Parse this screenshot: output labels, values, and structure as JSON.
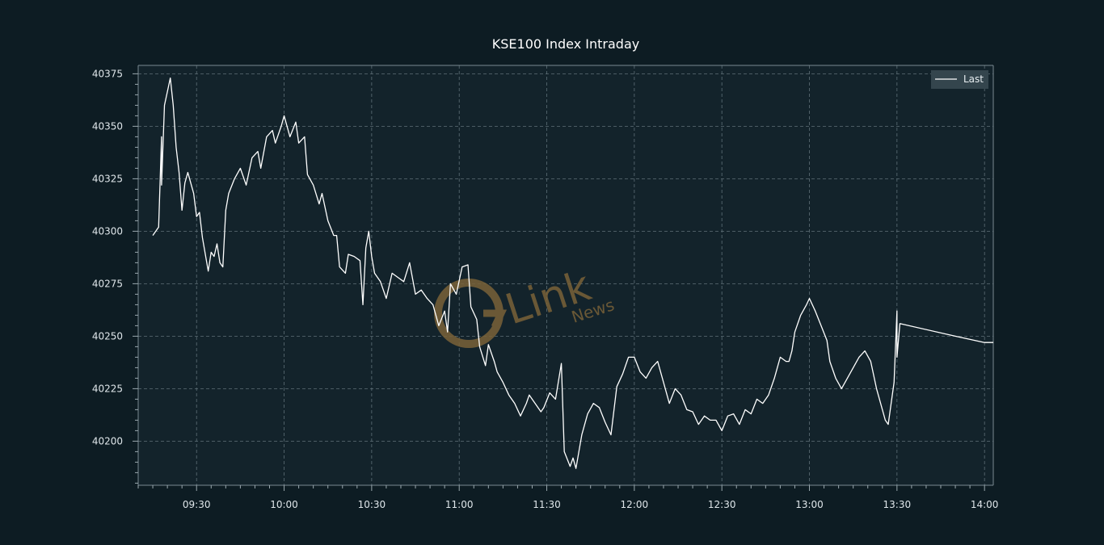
{
  "chart_data": {
    "type": "line",
    "title": "KSE100 Index Intraday",
    "xlabel": "",
    "ylabel": "",
    "x_ticks": [
      "09:30",
      "10:00",
      "10:30",
      "11:00",
      "11:30",
      "12:00",
      "12:30",
      "13:00",
      "13:30",
      "14:00"
    ],
    "y_ticks": [
      40200,
      40225,
      40250,
      40275,
      40300,
      40325,
      40350,
      40375
    ],
    "xlim": [
      "09:10",
      "14:03"
    ],
    "ylim": [
      40179,
      40379
    ],
    "grid": true,
    "legend_position": "top-right",
    "series": [
      {
        "name": "Last",
        "color": "#ffffff",
        "points": [
          [
            "09:15",
            40298
          ],
          [
            "09:17",
            40302
          ],
          [
            "09:18",
            40345
          ],
          [
            "09:18",
            40322
          ],
          [
            "09:19",
            40360
          ],
          [
            "09:21",
            40373
          ],
          [
            "09:22",
            40360
          ],
          [
            "09:23",
            40340
          ],
          [
            "09:24",
            40328
          ],
          [
            "09:25",
            40310
          ],
          [
            "09:26",
            40323
          ],
          [
            "09:27",
            40328
          ],
          [
            "09:29",
            40318
          ],
          [
            "09:30",
            40307
          ],
          [
            "09:31",
            40309
          ],
          [
            "09:32",
            40297
          ],
          [
            "09:34",
            40281
          ],
          [
            "09:35",
            40290
          ],
          [
            "09:36",
            40288
          ],
          [
            "09:37",
            40294
          ],
          [
            "09:38",
            40285
          ],
          [
            "09:39",
            40283
          ],
          [
            "09:40",
            40310
          ],
          [
            "09:41",
            40318
          ],
          [
            "09:43",
            40325
          ],
          [
            "09:45",
            40330
          ],
          [
            "09:47",
            40322
          ],
          [
            "09:49",
            40335
          ],
          [
            "09:51",
            40338
          ],
          [
            "09:52",
            40330
          ],
          [
            "09:54",
            40345
          ],
          [
            "09:56",
            40348
          ],
          [
            "09:57",
            40342
          ],
          [
            "09:59",
            40350
          ],
          [
            "10:00",
            40355
          ],
          [
            "10:02",
            40345
          ],
          [
            "10:04",
            40352
          ],
          [
            "10:05",
            40342
          ],
          [
            "10:07",
            40345
          ],
          [
            "10:08",
            40327
          ],
          [
            "10:10",
            40322
          ],
          [
            "10:12",
            40313
          ],
          [
            "10:13",
            40318
          ],
          [
            "10:15",
            40305
          ],
          [
            "10:17",
            40298
          ],
          [
            "10:18",
            40298
          ],
          [
            "10:19",
            40283
          ],
          [
            "10:21",
            40280
          ],
          [
            "10:22",
            40289
          ],
          [
            "10:24",
            40288
          ],
          [
            "10:26",
            40286
          ],
          [
            "10:27",
            40265
          ],
          [
            "10:28",
            40292
          ],
          [
            "10:29",
            40300
          ],
          [
            "10:30",
            40288
          ],
          [
            "10:31",
            40280
          ],
          [
            "10:33",
            40276
          ],
          [
            "10:35",
            40268
          ],
          [
            "10:37",
            40280
          ],
          [
            "10:39",
            40278
          ],
          [
            "10:41",
            40276
          ],
          [
            "10:43",
            40285
          ],
          [
            "10:45",
            40270
          ],
          [
            "10:47",
            40272
          ],
          [
            "10:49",
            40268
          ],
          [
            "10:51",
            40265
          ],
          [
            "10:53",
            40255
          ],
          [
            "10:55",
            40262
          ],
          [
            "10:56",
            40252
          ],
          [
            "10:57",
            40275
          ],
          [
            "10:59",
            40270
          ],
          [
            "11:01",
            40283
          ],
          [
            "11:03",
            40284
          ],
          [
            "11:04",
            40264
          ],
          [
            "11:06",
            40258
          ],
          [
            "11:07",
            40245
          ],
          [
            "11:09",
            40236
          ],
          [
            "11:10",
            40246
          ],
          [
            "11:12",
            40238
          ],
          [
            "11:13",
            40233
          ],
          [
            "11:15",
            40228
          ],
          [
            "11:17",
            40222
          ],
          [
            "11:19",
            40218
          ],
          [
            "11:21",
            40212
          ],
          [
            "11:23",
            40218
          ],
          [
            "11:24",
            40222
          ],
          [
            "11:26",
            40218
          ],
          [
            "11:28",
            40214
          ],
          [
            "11:29",
            40216
          ],
          [
            "11:31",
            40223
          ],
          [
            "11:33",
            40220
          ],
          [
            "11:35",
            40237
          ],
          [
            "11:36",
            40195
          ],
          [
            "11:38",
            40188
          ],
          [
            "11:39",
            40192
          ],
          [
            "11:40",
            40187
          ],
          [
            "11:42",
            40203
          ],
          [
            "11:44",
            40213
          ],
          [
            "11:46",
            40218
          ],
          [
            "11:48",
            40216
          ],
          [
            "11:50",
            40209
          ],
          [
            "11:52",
            40203
          ],
          [
            "11:54",
            40226
          ],
          [
            "11:56",
            40232
          ],
          [
            "11:58",
            40240
          ],
          [
            "12:00",
            40240
          ],
          [
            "12:02",
            40233
          ],
          [
            "12:04",
            40230
          ],
          [
            "12:06",
            40235
          ],
          [
            "12:08",
            40238
          ],
          [
            "12:10",
            40228
          ],
          [
            "12:12",
            40218
          ],
          [
            "12:14",
            40225
          ],
          [
            "12:16",
            40222
          ],
          [
            "12:18",
            40215
          ],
          [
            "12:20",
            40214
          ],
          [
            "12:22",
            40208
          ],
          [
            "12:24",
            40212
          ],
          [
            "12:26",
            40210
          ],
          [
            "12:28",
            40210
          ],
          [
            "12:30",
            40205
          ],
          [
            "12:32",
            40212
          ],
          [
            "12:34",
            40213
          ],
          [
            "12:36",
            40208
          ],
          [
            "12:38",
            40215
          ],
          [
            "12:40",
            40213
          ],
          [
            "12:42",
            40220
          ],
          [
            "12:44",
            40218
          ],
          [
            "12:46",
            40222
          ],
          [
            "12:48",
            40230
          ],
          [
            "12:50",
            40240
          ],
          [
            "12:52",
            40238
          ],
          [
            "12:53",
            40238
          ],
          [
            "12:54",
            40243
          ],
          [
            "12:55",
            40252
          ],
          [
            "12:57",
            40260
          ],
          [
            "12:59",
            40265
          ],
          [
            "13:00",
            40268
          ],
          [
            "13:02",
            40262
          ],
          [
            "13:04",
            40255
          ],
          [
            "13:06",
            40248
          ],
          [
            "13:07",
            40238
          ],
          [
            "13:09",
            40230
          ],
          [
            "13:11",
            40225
          ],
          [
            "13:13",
            40230
          ],
          [
            "13:15",
            40235
          ],
          [
            "13:17",
            40240
          ],
          [
            "13:19",
            40243
          ],
          [
            "13:21",
            40238
          ],
          [
            "13:23",
            40225
          ],
          [
            "13:25",
            40215
          ],
          [
            "13:26",
            40210
          ],
          [
            "13:27",
            40208
          ],
          [
            "13:29",
            40228
          ],
          [
            "13:30",
            40262
          ],
          [
            "13:30",
            40240
          ],
          [
            "13:31",
            40256
          ],
          [
            "13:50",
            40250
          ],
          [
            "14:00",
            40247
          ],
          [
            "14:03",
            40247
          ]
        ]
      }
    ]
  },
  "watermark": {
    "brand": "Link",
    "sub": "News",
    "color": "#7a6238"
  }
}
